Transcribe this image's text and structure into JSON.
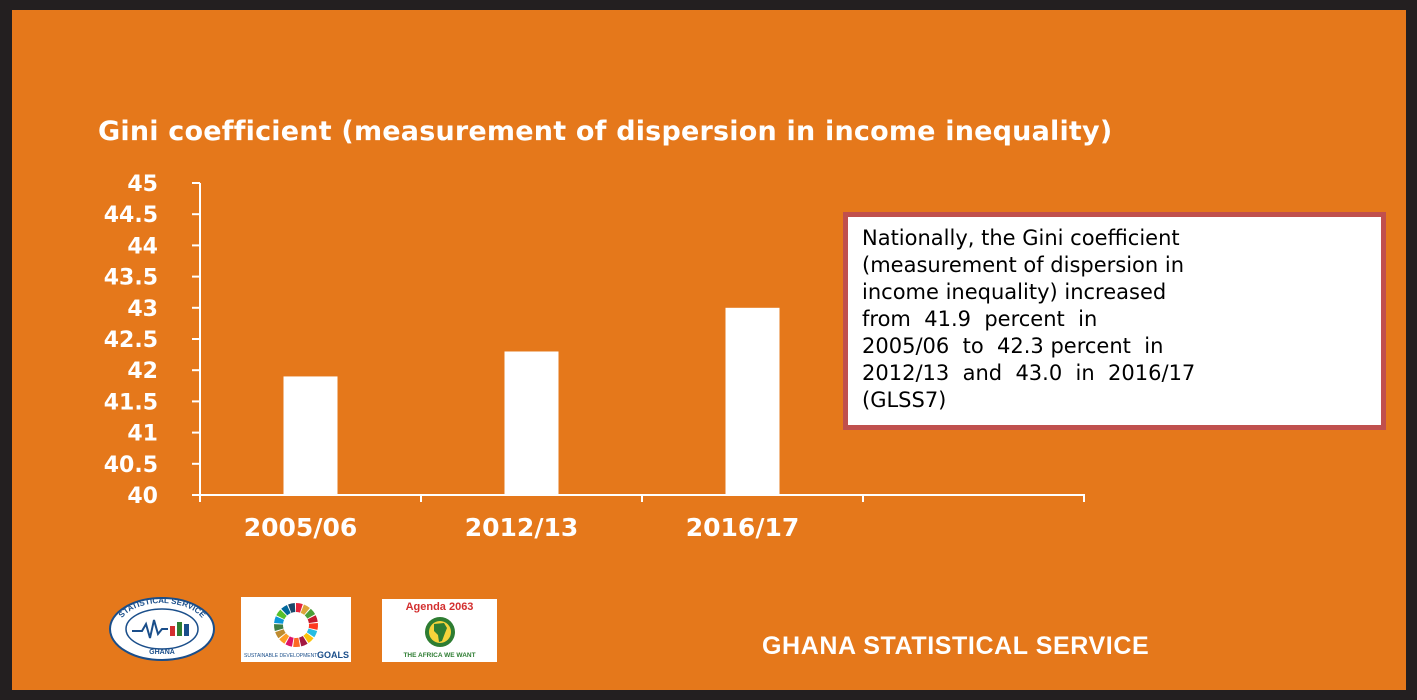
{
  "chart_data": {
    "type": "bar",
    "title": "Gini coefficient  (measurement of dispersion in income inequality)",
    "categories": [
      "2005/06",
      "2012/13",
      "2016/17"
    ],
    "values": [
      41.9,
      42.3,
      43.0
    ],
    "yticks": [
      "40",
      "40.5",
      "41",
      "41.5",
      "42",
      "42.5",
      "43",
      "43.5",
      "44",
      "44.5",
      "45"
    ],
    "ylim": [
      40,
      45
    ],
    "xlabel": "",
    "ylabel": "",
    "grid": false,
    "bar_color": "#ffffff"
  },
  "note": {
    "lines": [
      "Nationally, the Gini coefficient",
      "(measurement of dispersion in",
      "income inequality) increased",
      "from  41.9  percent  in",
      "2005/06  to  42.3 percent  in",
      "2012/13  and  43.0  in  2016/17",
      "(GLSS7)"
    ]
  },
  "footer": {
    "organization": "GHANA STATISTICAL SERVICE"
  },
  "logos": {
    "gss": {
      "ring_text": "STATISTICAL SERVICE",
      "bottom_text": "GHANA"
    },
    "sdg": {
      "small_text": "SUSTAINABLE DEVELOPMENT",
      "goals_text": "GOALS"
    },
    "agenda": {
      "top_text": "Agenda 2063",
      "bottom_text": "THE AFRICA WE WANT"
    }
  },
  "colors": {
    "background": "#e5781b",
    "frame": "#231f20",
    "note_border": "#c0504d",
    "text": "#ffffff"
  }
}
